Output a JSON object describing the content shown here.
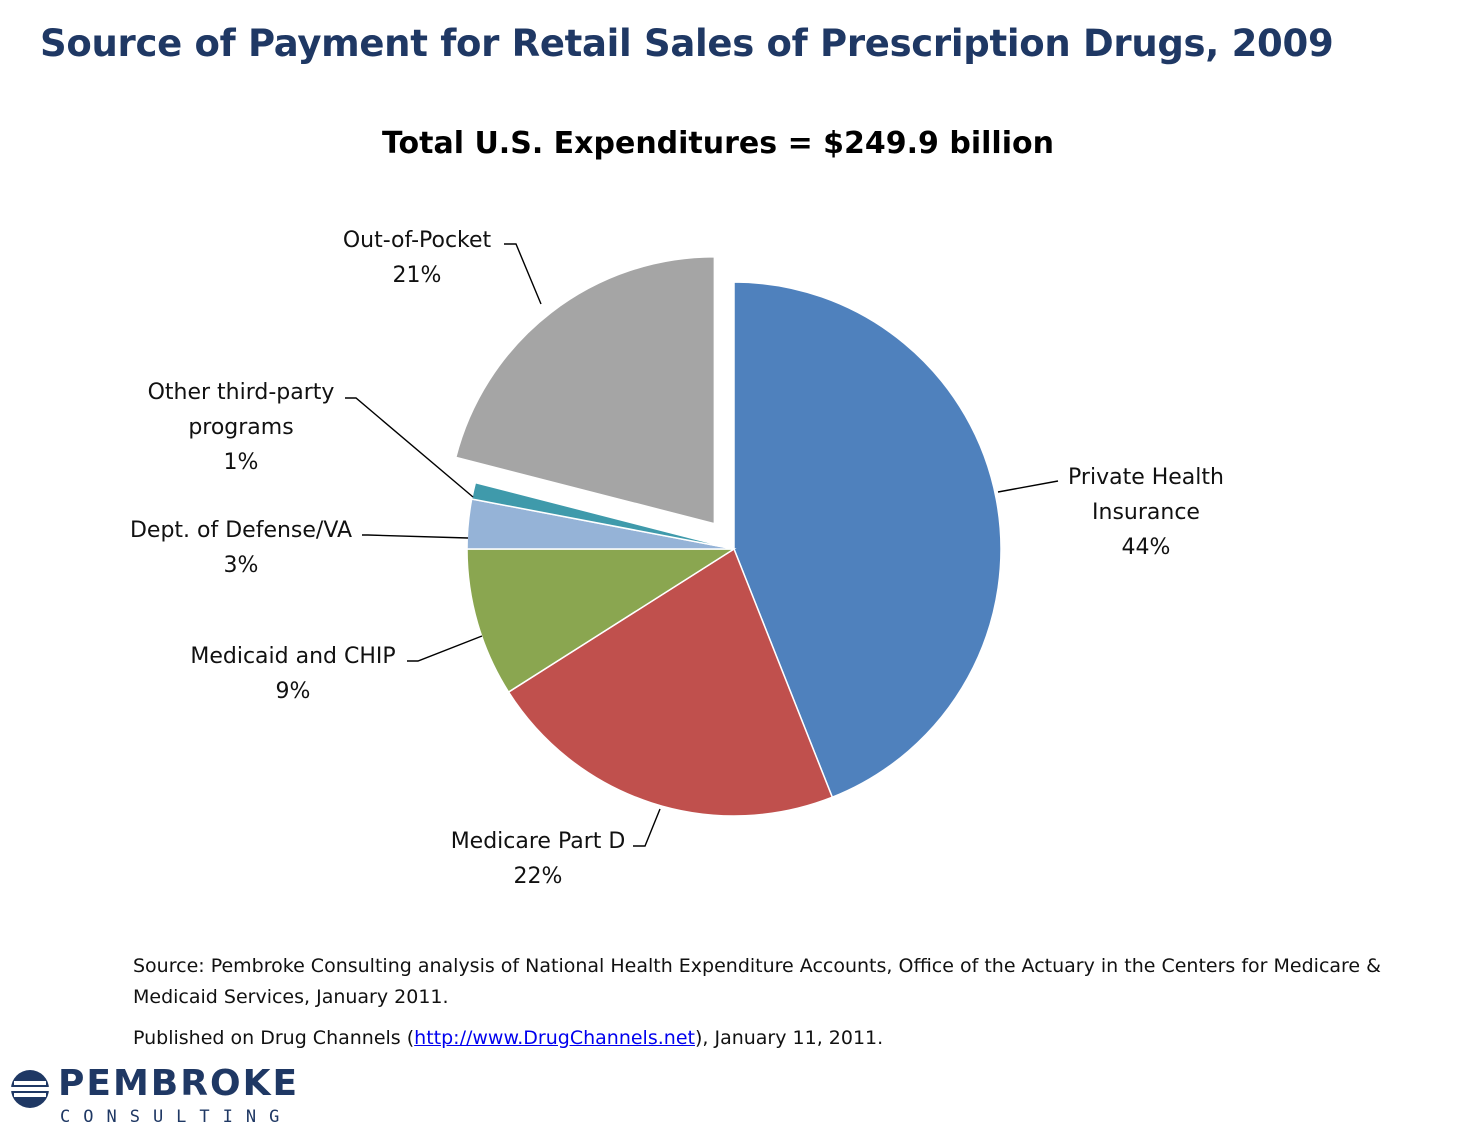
{
  "slide": {
    "title": "Source of Payment for Retail Sales of Prescription Drugs, 2009"
  },
  "chart_data": {
    "type": "pie",
    "title": "Total U.S. Expenditures = $249.9 billion",
    "slices": [
      {
        "label_lines": [
          "Private Health",
          "Insurance"
        ],
        "pct_label": "44%",
        "value": 44,
        "color": "#4f81bd",
        "exploded": false
      },
      {
        "label_lines": [
          "Medicare Part D"
        ],
        "pct_label": "22%",
        "value": 22,
        "color": "#c0504d",
        "exploded": false
      },
      {
        "label_lines": [
          "Medicaid and CHIP"
        ],
        "pct_label": "9%",
        "value": 9,
        "color": "#8aa650",
        "exploded": false
      },
      {
        "label_lines": [
          "Dept. of Defense/VA"
        ],
        "pct_label": "3%",
        "value": 3,
        "color": "#95b3d7",
        "exploded": false
      },
      {
        "label_lines": [
          "Other third-party",
          "programs"
        ],
        "pct_label": "1%",
        "value": 1,
        "color": "#3f9aab",
        "exploded": false
      },
      {
        "label_lines": [
          "Out-of-Pocket"
        ],
        "pct_label": "21%",
        "value": 21,
        "color": "#a5a5a5",
        "exploded": true
      }
    ]
  },
  "footer": {
    "source": "Source: Pembroke Consulting analysis of National Health Expenditure Accounts, Office of the Actuary in the Centers for Medicare & Medicaid Services, January 2011.",
    "published_prefix": "Published on Drug Channels (",
    "published_link": "http://www.DrugChannels.net",
    "published_suffix": "), January 11, 2011."
  },
  "logo": {
    "name": "PEMBROKE",
    "tagline": "CONSULTING",
    "icon": "pembroke-logo-icon",
    "color": "#1f3864"
  }
}
